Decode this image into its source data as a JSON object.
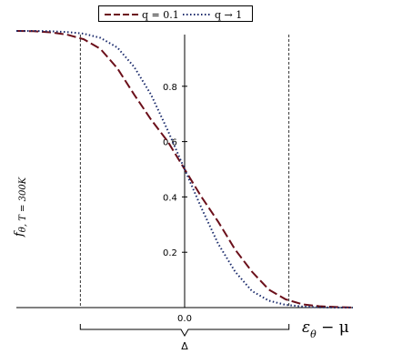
{
  "chart_data": {
    "type": "line",
    "xlabel_main": "ε",
    "xlabel_sub": "θ",
    "xlabel_rest": "− μ",
    "ylabel_main": "f",
    "ylabel_sub": "θ, T = 300K",
    "x_tick_labels": [
      "0.0"
    ],
    "y_tick_labels": [
      "0.2",
      "0.4",
      "0.6",
      "0.8"
    ],
    "y_ticks": [
      0.2,
      0.4,
      0.6,
      0.8
    ],
    "ylim": [
      0,
      1.0
    ],
    "xlim": [
      -1.0,
      1.0
    ],
    "delta_label": "Δ",
    "delta_range": [
      -0.62,
      0.62
    ],
    "legend_position": "top",
    "grid": false,
    "series": [
      {
        "name": "q = 0.1",
        "style": "dashed",
        "color": "#6b0f1a",
        "x": [
          -1.0,
          -0.9,
          -0.8,
          -0.7,
          -0.6,
          -0.5,
          -0.4,
          -0.3,
          -0.2,
          -0.1,
          0.0,
          0.1,
          0.2,
          0.3,
          0.4,
          0.5,
          0.6,
          0.7,
          0.8,
          0.9,
          1.0
        ],
        "y": [
          1.0,
          0.999,
          0.995,
          0.987,
          0.97,
          0.935,
          0.865,
          0.77,
          0.68,
          0.6,
          0.5,
          0.4,
          0.31,
          0.21,
          0.13,
          0.065,
          0.03,
          0.012,
          0.005,
          0.002,
          0.0
        ]
      },
      {
        "name": "q → 1",
        "style": "dotted",
        "color": "#1a2a6b",
        "x": [
          -1.0,
          -0.9,
          -0.8,
          -0.7,
          -0.6,
          -0.5,
          -0.4,
          -0.3,
          -0.2,
          -0.1,
          0.0,
          0.1,
          0.2,
          0.3,
          0.4,
          0.5,
          0.6,
          0.7,
          0.8,
          0.9,
          1.0
        ],
        "y": [
          1.0,
          1.0,
          0.999,
          0.996,
          0.99,
          0.975,
          0.94,
          0.87,
          0.77,
          0.64,
          0.5,
          0.36,
          0.23,
          0.13,
          0.06,
          0.025,
          0.01,
          0.004,
          0.001,
          0.0,
          0.0
        ]
      }
    ]
  }
}
